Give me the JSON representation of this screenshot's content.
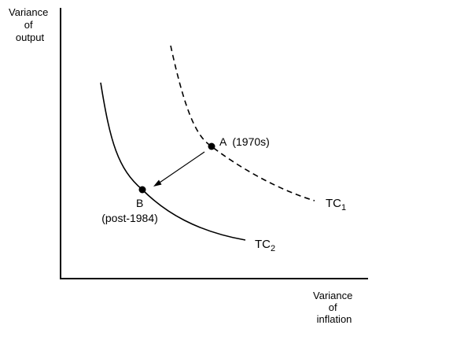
{
  "axes": {
    "y_label_lines": [
      "Variance",
      "of",
      "output"
    ],
    "x_label_lines": [
      "Variance",
      "of",
      "inflation"
    ]
  },
  "curves": {
    "tc1": {
      "label": "TC",
      "subscript": "1",
      "style": "dashed"
    },
    "tc2": {
      "label": "TC",
      "subscript": "2",
      "style": "solid"
    }
  },
  "points": {
    "a": {
      "label": "A  (1970s)"
    },
    "b": {
      "label": "B",
      "sublabel": "(post-1984)"
    }
  },
  "colors": {
    "ink": "#000000",
    "background": "#ffffff"
  }
}
